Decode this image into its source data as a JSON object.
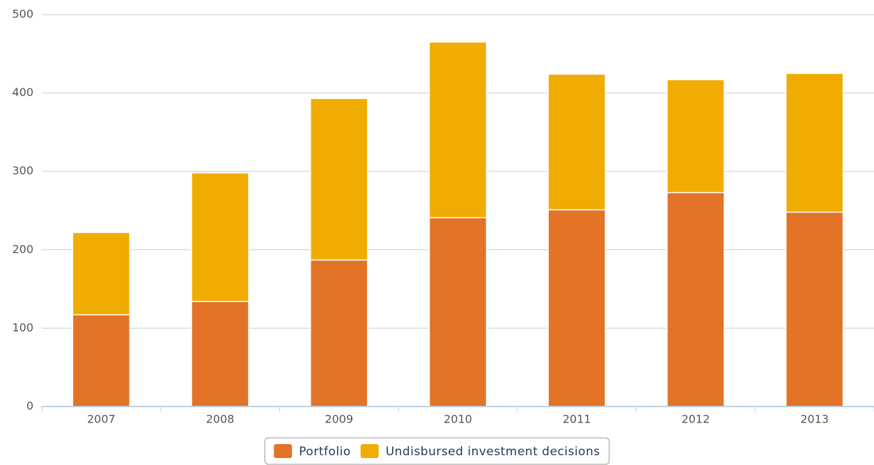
{
  "chart_data": {
    "type": "stacked_bar",
    "categories": [
      "2007",
      "2008",
      "2009",
      "2010",
      "2011",
      "2012",
      "2013"
    ],
    "series": [
      {
        "name": "Portfolio",
        "color": "#e37326",
        "values": [
          117,
          134,
          187,
          241,
          251,
          273,
          248
        ]
      },
      {
        "name": "Undisbursed investment decisions",
        "color": "#f0ac00",
        "values": [
          105,
          164,
          206,
          224,
          173,
          144,
          177
        ]
      }
    ],
    "ylim": [
      0,
      500
    ],
    "yticks": [
      0,
      100,
      200,
      300,
      400,
      500
    ],
    "grid": true,
    "legend": "bottom"
  }
}
